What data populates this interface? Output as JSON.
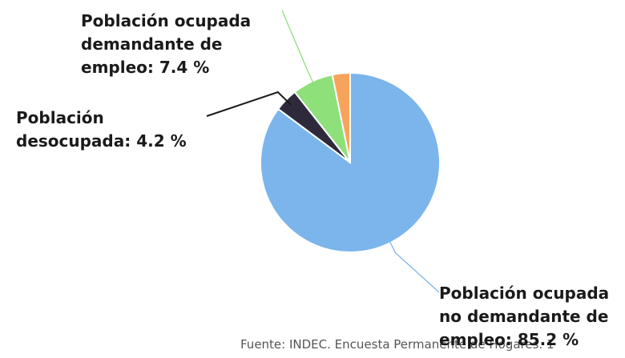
{
  "chart_data": {
    "type": "pie",
    "slices": [
      {
        "label_lines": [
          "Población ocupada",
          "no demandante de",
          "empleo: 85.2 %"
        ],
        "value": 85.2,
        "color": "#7cb5ec"
      },
      {
        "label_lines": [
          "Población",
          "desocupada: 4.2 %"
        ],
        "value": 4.2,
        "color": "#2e2a3b"
      },
      {
        "label_lines": [
          "Población ocupada",
          "demandante de",
          "empleo: 7.4 %"
        ],
        "value": 7.4,
        "color": "#8ee07a"
      },
      {
        "label_lines": [],
        "value": 3.2,
        "color": "#f7a35c"
      }
    ],
    "legend": "none"
  },
  "source_text": "Fuente: INDEC. Encuesta Permanente de Hogares. 1"
}
